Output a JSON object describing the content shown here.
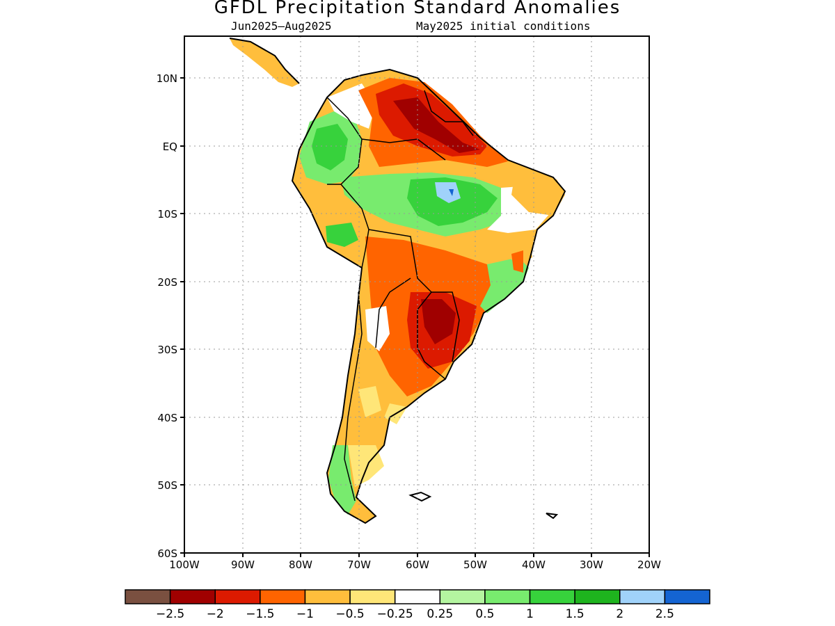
{
  "title": "GFDL Precipitation Standard Anomalies",
  "period": "Jun2025–Aug2025",
  "init": "May2025 initial conditions",
  "lat_labels": [
    "10N",
    "EQ",
    "10S",
    "20S",
    "30S",
    "40S",
    "50S",
    "60S"
  ],
  "lon_labels": [
    "100W",
    "90W",
    "80W",
    "70W",
    "60W",
    "50W",
    "40W",
    "30W",
    "20W"
  ],
  "legend": {
    "colors": [
      "#7a5040",
      "#a00000",
      "#dc1a00",
      "#ff6400",
      "#ffbe3c",
      "#ffe678",
      "#ffffff",
      "#b4f5a0",
      "#78eb6e",
      "#37d23c",
      "#1eb41e",
      "#a0d2fa",
      "#1464d2"
    ],
    "labels": [
      "−2.5",
      "−2",
      "−1.5",
      "−1",
      "−0.5",
      "−0.25",
      "0.25",
      "0.5",
      "1",
      "1.5",
      "2",
      "2.5"
    ]
  }
}
